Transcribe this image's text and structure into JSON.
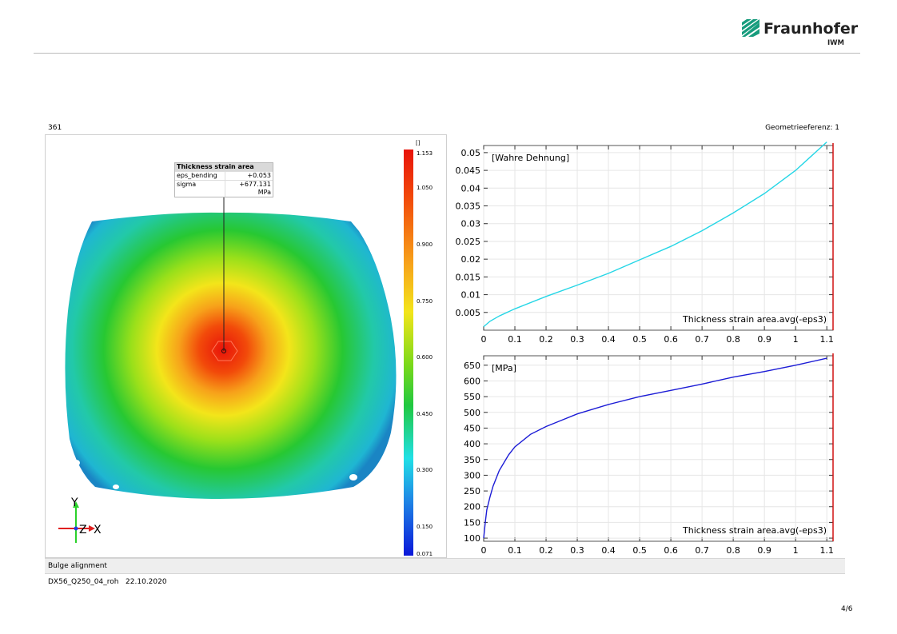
{
  "header": {
    "logo_name": "Fraunhofer",
    "logo_sub": "IWM"
  },
  "view": {
    "frame_label": "361",
    "geometry_reference": "Geometrieeferenz: 1",
    "tooltip": {
      "title": "Thickness strain area",
      "rows": [
        {
          "key": "eps_bending",
          "value": "+0.053"
        },
        {
          "key": "sigma",
          "value": "+677.131 MPa"
        }
      ]
    },
    "colorbar": {
      "unit": "[]",
      "ticks": [
        "1.153",
        "1.050",
        "0.900",
        "0.750",
        "0.600",
        "0.450",
        "0.300",
        "0.150",
        "0.071"
      ]
    },
    "axes_triad": {
      "y": "Y",
      "z": "Z",
      "x": "X"
    }
  },
  "footer": {
    "panel_title": "Bulge alignment",
    "info": "DX56_Q250_04_roh   22.10.2020",
    "page": "4/6"
  },
  "chart_data": [
    {
      "type": "line",
      "title": "",
      "ylabel": "[Wahre Dehnung]",
      "xlabel": "Thickness strain area.avg(-eps3)",
      "xlim": [
        0,
        1.12
      ],
      "ylim": [
        0,
        0.052
      ],
      "xticks": [
        "0",
        "0.1",
        "0.2",
        "0.3",
        "0.4",
        "0.5",
        "0.6",
        "0.7",
        "0.8",
        "0.9",
        "1",
        "1.1"
      ],
      "yticks": [
        "0.005",
        "0.01",
        "0.015",
        "0.02",
        "0.025",
        "0.03",
        "0.035",
        "0.04",
        "0.045",
        "0.05"
      ],
      "grid": true,
      "color": "#25d6e6",
      "x": [
        0,
        0.02,
        0.05,
        0.1,
        0.2,
        0.3,
        0.4,
        0.5,
        0.6,
        0.7,
        0.8,
        0.9,
        1.0,
        1.1
      ],
      "y": [
        0.001,
        0.0025,
        0.004,
        0.006,
        0.0095,
        0.0127,
        0.016,
        0.0198,
        0.0236,
        0.028,
        0.033,
        0.0385,
        0.045,
        0.053
      ]
    },
    {
      "type": "line",
      "title": "",
      "ylabel": "[MPa]",
      "xlabel": "Thickness strain area.avg(-eps3)",
      "xlim": [
        0,
        1.12
      ],
      "ylim": [
        90,
        680
      ],
      "xticks": [
        "0",
        "0.1",
        "0.2",
        "0.3",
        "0.4",
        "0.5",
        "0.6",
        "0.7",
        "0.8",
        "0.9",
        "1",
        "1.1"
      ],
      "yticks": [
        "100",
        "150",
        "200",
        "250",
        "300",
        "350",
        "400",
        "450",
        "500",
        "550",
        "600",
        "650"
      ],
      "grid": true,
      "color": "#1c1cd6",
      "x": [
        0,
        0.005,
        0.01,
        0.02,
        0.03,
        0.05,
        0.08,
        0.1,
        0.15,
        0.2,
        0.25,
        0.3,
        0.4,
        0.5,
        0.6,
        0.7,
        0.8,
        0.9,
        1.0,
        1.1
      ],
      "y": [
        100,
        150,
        190,
        230,
        265,
        315,
        365,
        390,
        430,
        455,
        475,
        495,
        525,
        550,
        570,
        590,
        612,
        630,
        650,
        672
      ]
    }
  ]
}
